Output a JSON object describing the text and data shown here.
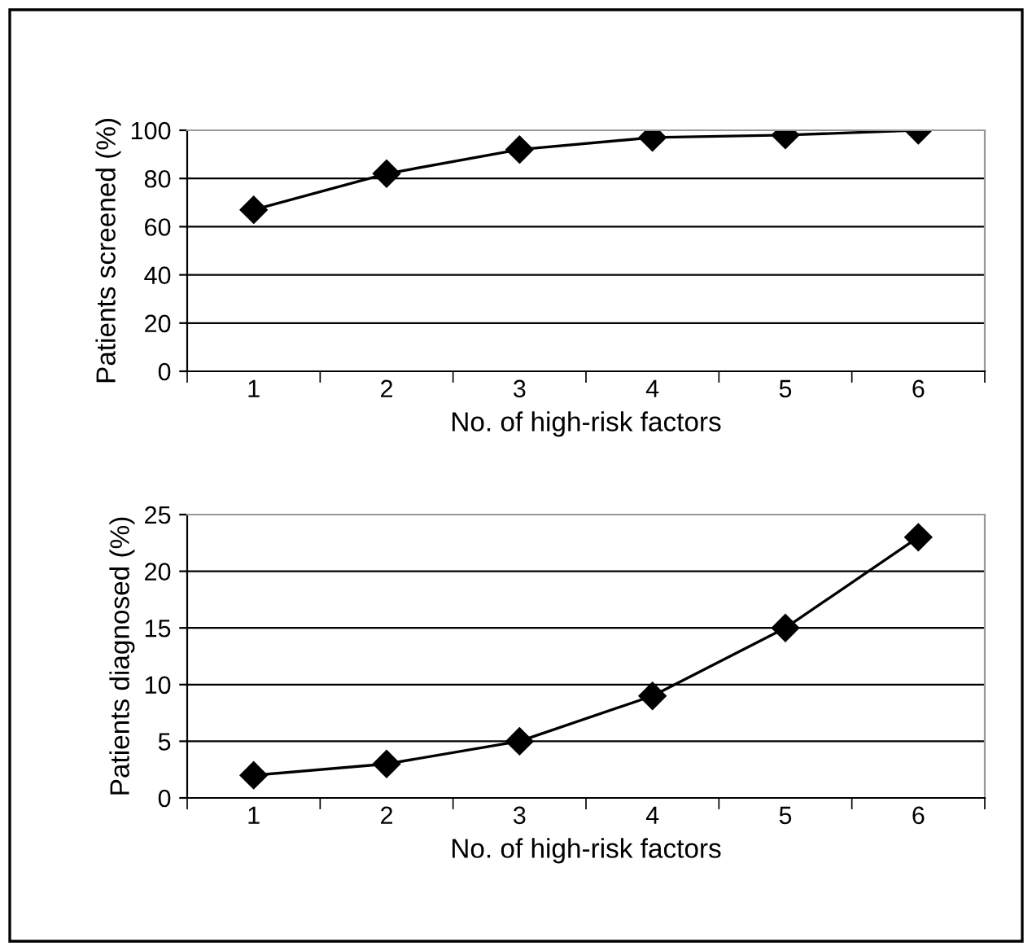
{
  "chart_data": [
    {
      "type": "line",
      "xlabel": "No. of high-risk factors",
      "ylabel": "Patients screened (%)",
      "categories": [
        "1",
        "2",
        "3",
        "4",
        "5",
        "6"
      ],
      "series": [
        {
          "color": "#000000",
          "values": [
            67,
            82,
            92,
            97,
            98,
            100
          ]
        }
      ],
      "ylim": [
        0,
        100
      ],
      "yticks": [
        0,
        20,
        40,
        60,
        80,
        100
      ],
      "grid": "y",
      "marker": "diamond",
      "line_style": "solid",
      "legend": false
    },
    {
      "type": "line",
      "xlabel": "No. of high-risk factors",
      "ylabel": "Patients diagnosed (%)",
      "categories": [
        "1",
        "2",
        "3",
        "4",
        "5",
        "6"
      ],
      "series": [
        {
          "color": "#000000",
          "values": [
            2,
            3,
            5,
            9,
            15,
            23
          ]
        }
      ],
      "ylim": [
        0,
        25
      ],
      "yticks": [
        0,
        5,
        10,
        15,
        20,
        25
      ],
      "grid": "y",
      "marker": "diamond",
      "line_style": "solid",
      "legend": false
    }
  ]
}
